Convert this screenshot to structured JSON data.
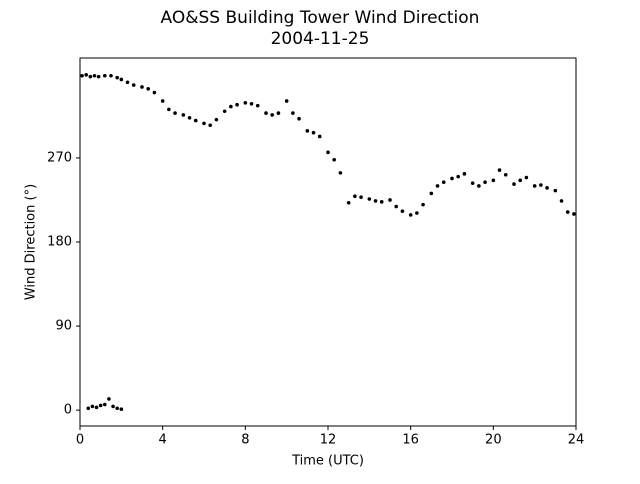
{
  "chart_data": {
    "type": "scatter",
    "title": "AO&SS Building Tower Wind Direction",
    "subtitle": "2004-11-25",
    "x_label": "Time (UTC)",
    "y_label": "Wind Direction (°)",
    "color": "#000000",
    "x": [
      0.1,
      0.3,
      0.5,
      0.7,
      0.9,
      1.2,
      1.5,
      1.8,
      2.0,
      2.3,
      2.6,
      3.0,
      3.3,
      3.6,
      4.0,
      4.3,
      4.6,
      5.0,
      5.3,
      5.6,
      6.0,
      6.3,
      6.6,
      7.0,
      7.3,
      7.6,
      8.0,
      8.3,
      8.6,
      9.0,
      9.3,
      9.6,
      10.0,
      10.3,
      10.6,
      11.0,
      11.3,
      11.6,
      12.0,
      12.3,
      12.6,
      13.0,
      13.3,
      13.6,
      14.0,
      14.3,
      14.6,
      15.0,
      15.3,
      15.6,
      16.0,
      16.3,
      16.6,
      17.0,
      17.3,
      17.6,
      18.0,
      18.3,
      18.6,
      19.0,
      19.3,
      19.6,
      20.0,
      20.3,
      20.6,
      21.0,
      21.3,
      21.6,
      22.0,
      22.3,
      22.6,
      23.0,
      23.3,
      23.6,
      23.9,
      0.4,
      0.6,
      0.8,
      1.0,
      1.2,
      1.4,
      1.6,
      1.8,
      2.0
    ],
    "values": [
      358,
      359,
      357,
      358,
      357,
      358,
      358,
      356,
      354,
      351,
      348,
      346,
      344,
      340,
      331,
      322,
      318,
      316,
      313,
      310,
      307,
      305,
      311,
      320,
      325,
      327,
      329,
      328,
      326,
      318,
      316,
      318,
      331,
      318,
      312,
      299,
      297,
      293,
      276,
      268,
      254,
      222,
      229,
      228,
      226,
      224,
      223,
      225,
      218,
      213,
      209,
      211,
      220,
      232,
      240,
      244,
      248,
      250,
      253,
      243,
      240,
      244,
      246,
      257,
      252,
      242,
      246,
      249,
      240,
      241,
      238,
      235,
      224,
      212,
      210,
      2,
      4,
      3,
      5,
      6,
      12,
      4,
      2,
      1
    ],
    "xlim": [
      0,
      24
    ],
    "xticks": [
      0,
      4,
      8,
      12,
      16,
      20,
      24
    ],
    "ylim": [
      -17,
      377
    ],
    "yticks": [
      0,
      90,
      180,
      270
    ]
  }
}
